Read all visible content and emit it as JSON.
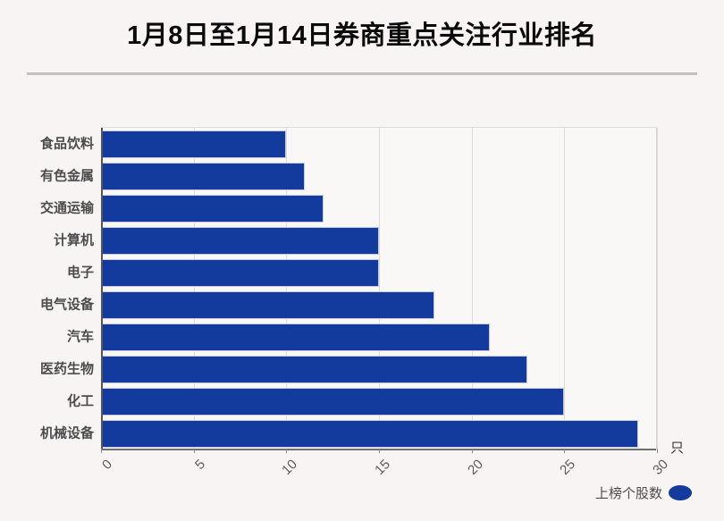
{
  "title": "1月8日至1月14日券商重点关注行业排名",
  "unit_label": "只",
  "legend": {
    "label": "上榜个股数"
  },
  "colors": {
    "bar": "#123b9d",
    "background": "#f8f4f4",
    "grid": "#dcdada",
    "title_text": "#0a0a0a",
    "category_text": "#4c4c4c",
    "tick_text": "#5c5c5c"
  },
  "chart_data": {
    "type": "bar",
    "orientation": "horizontal",
    "title": "1月8日至1月14日券商重点关注行业排名",
    "categories": [
      "食品饮料",
      "有色金属",
      "交通运输",
      "计算机",
      "电子",
      "电气设备",
      "汽车",
      "医药生物",
      "化工",
      "机械设备"
    ],
    "series": [
      {
        "name": "上榜个股数",
        "values": [
          10,
          11,
          12,
          15,
          15,
          18,
          21,
          23,
          25,
          29
        ]
      }
    ],
    "xlabel": "只",
    "ylabel": "",
    "xlim": [
      0,
      30
    ],
    "xticks": [
      0,
      5,
      10,
      15,
      20,
      25,
      30
    ],
    "grid": true,
    "legend_position": "bottom-right"
  }
}
